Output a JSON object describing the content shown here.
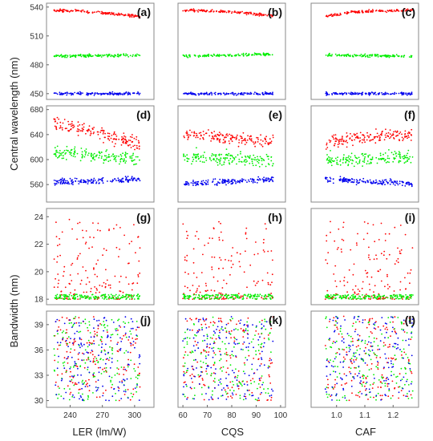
{
  "figure": {
    "ylabel_top": "Central wavelength (nm)",
    "ylabel_bottom": "Bandwidth (nm)",
    "xlabels": [
      "LER (lm/W)",
      "CQS",
      "CAF"
    ],
    "x_ticks": [
      [
        240,
        270,
        300
      ],
      [
        60,
        70,
        80,
        90,
        100
      ],
      [
        "1.0",
        "1.1",
        "1.2"
      ]
    ],
    "xlim": [
      [
        218,
        318
      ],
      [
        58,
        102
      ],
      [
        0.91,
        1.29
      ]
    ],
    "rows": [
      {
        "ylim": [
          444,
          544
        ],
        "ticks": [
          450,
          480,
          510,
          540
        ]
      },
      {
        "ylim": [
          532,
          686
        ],
        "ticks": [
          560,
          600,
          640,
          680
        ]
      },
      {
        "ylim": [
          17.6,
          24.6
        ],
        "ticks": [
          18,
          20,
          22,
          24
        ]
      },
      {
        "ylim": [
          29.2,
          40.6
        ],
        "ticks": [
          30,
          33,
          36,
          39
        ]
      }
    ],
    "panel_labels": [
      "(a)",
      "(b)",
      "(c)",
      "(d)",
      "(e)",
      "(f)",
      "(g)",
      "(h)",
      "(i)",
      "(j)",
      "(k)",
      "(l)"
    ]
  },
  "chart_data": {
    "type": "scatter",
    "colors": {
      "red": "#ff0000",
      "green": "#00ee00",
      "blue": "#0000ee"
    },
    "panels": [
      {
        "id": "a",
        "x": "LER",
        "trends": [
          {
            "color": "red",
            "x": [
              225,
              260,
              290,
              305
            ],
            "y": [
              537,
              535,
              532,
              530
            ]
          },
          {
            "color": "green",
            "x": [
              225,
              305
            ],
            "y": [
              489,
              490
            ]
          },
          {
            "color": "blue",
            "x": [
              225,
              305
            ],
            "y": [
              450,
              450
            ]
          }
        ]
      },
      {
        "id": "b",
        "x": "CQS",
        "trends": [
          {
            "color": "red",
            "x": [
              60,
              80,
              97
            ],
            "y": [
              537,
              535,
              531
            ]
          },
          {
            "color": "green",
            "x": [
              60,
              97
            ],
            "y": [
              489,
              491
            ]
          },
          {
            "color": "blue",
            "x": [
              60,
              97
            ],
            "y": [
              450,
              450
            ]
          }
        ]
      },
      {
        "id": "c",
        "x": "CAF",
        "trends": [
          {
            "color": "red",
            "x": [
              0.96,
              1.05,
              1.27
            ],
            "y": [
              530,
              535,
              537
            ]
          },
          {
            "color": "green",
            "x": [
              0.96,
              1.27
            ],
            "y": [
              490,
              489
            ]
          },
          {
            "color": "blue",
            "x": [
              0.96,
              1.27
            ],
            "y": [
              450,
              450
            ]
          }
        ]
      },
      {
        "id": "d",
        "x": "LER",
        "trends": [
          {
            "color": "red",
            "x": [
              225,
              270,
              305
            ],
            "y": [
              658,
              642,
              622
            ]
          },
          {
            "color": "green",
            "x": [
              225,
              305
            ],
            "y": [
              612,
              600
            ]
          },
          {
            "color": "blue",
            "x": [
              225,
              305
            ],
            "y": [
              564,
              568
            ]
          }
        ]
      },
      {
        "id": "e",
        "x": "CQS",
        "trends": [
          {
            "color": "red",
            "x": [
              60,
              97
            ],
            "y": [
              640,
              630
            ]
          },
          {
            "color": "green",
            "x": [
              60,
              97
            ],
            "y": [
              605,
              598
            ]
          },
          {
            "color": "blue",
            "x": [
              60,
              97
            ],
            "y": [
              561,
              569
            ]
          }
        ]
      },
      {
        "id": "f",
        "x": "CAF",
        "trends": [
          {
            "color": "red",
            "x": [
              0.96,
              1.27
            ],
            "y": [
              628,
              642
            ]
          },
          {
            "color": "green",
            "x": [
              0.96,
              1.27
            ],
            "y": [
              600,
              605
            ]
          },
          {
            "color": "blue",
            "x": [
              0.96,
              1.27
            ],
            "y": [
              568,
              561
            ]
          }
        ]
      },
      {
        "id": "g",
        "x": "LER",
        "trends": [
          {
            "color": "red",
            "x": [
              225,
              305
            ],
            "y": [
              19.5,
              19.5
            ]
          },
          {
            "color": "green",
            "x": [
              225,
              305
            ],
            "y": [
              18.1,
              18.1
            ]
          }
        ]
      },
      {
        "id": "h",
        "x": "CQS",
        "trends": [
          {
            "color": "red",
            "x": [
              60,
              97
            ],
            "y": [
              19.5,
              19.5
            ]
          },
          {
            "color": "green",
            "x": [
              60,
              97
            ],
            "y": [
              18.1,
              18.1
            ]
          }
        ]
      },
      {
        "id": "i",
        "x": "CAF",
        "trends": [
          {
            "color": "red",
            "x": [
              0.96,
              1.27
            ],
            "y": [
              19.5,
              19.5
            ]
          },
          {
            "color": "green",
            "x": [
              0.96,
              1.27
            ],
            "y": [
              18.1,
              18.1
            ]
          }
        ]
      },
      {
        "id": "j",
        "x": "LER",
        "trends": [
          {
            "color": "red",
            "x": [
              225,
              305
            ],
            "y": [
              34,
              34
            ]
          },
          {
            "color": "green",
            "x": [
              225,
              305
            ],
            "y": [
              35,
              35
            ]
          },
          {
            "color": "blue",
            "x": [
              225,
              305
            ],
            "y": [
              33,
              33
            ]
          }
        ]
      },
      {
        "id": "k",
        "x": "CQS",
        "trends": [
          {
            "color": "red",
            "x": [
              60,
              97
            ],
            "y": [
              34,
              34
            ]
          },
          {
            "color": "green",
            "x": [
              60,
              97
            ],
            "y": [
              35,
              35
            ]
          },
          {
            "color": "blue",
            "x": [
              60,
              97
            ],
            "y": [
              33,
              33
            ]
          }
        ]
      },
      {
        "id": "l",
        "x": "CAF",
        "trends": [
          {
            "color": "red",
            "x": [
              0.96,
              1.27
            ],
            "y": [
              34,
              34
            ]
          },
          {
            "color": "green",
            "x": [
              0.96,
              1.27
            ],
            "y": [
              35,
              35
            ]
          },
          {
            "color": "blue",
            "x": [
              0.96,
              1.27
            ],
            "y": [
              33,
              33
            ]
          }
        ]
      }
    ]
  }
}
